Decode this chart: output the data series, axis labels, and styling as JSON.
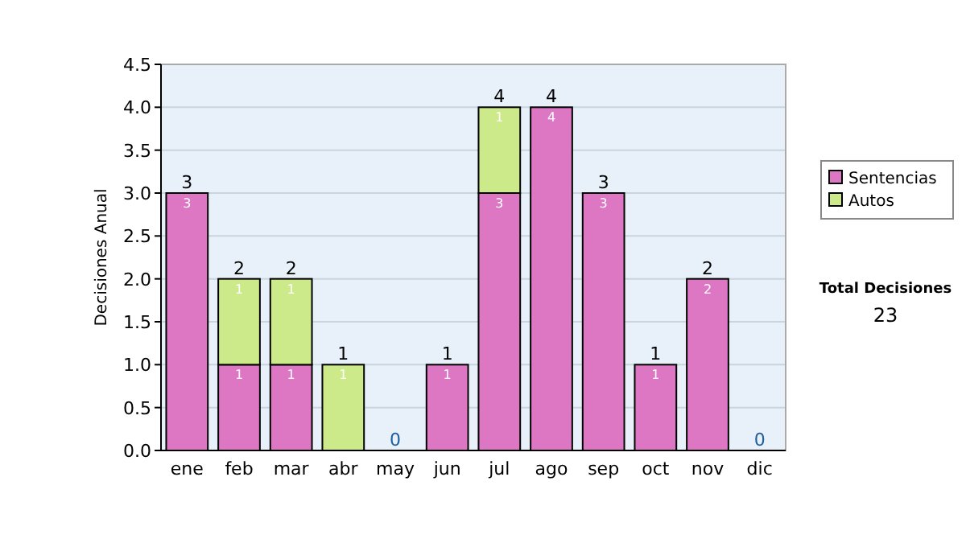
{
  "chart_data": {
    "type": "bar",
    "stacked": true,
    "ylabel": "Decisiones Anual",
    "categories": [
      "ene",
      "feb",
      "mar",
      "abr",
      "may",
      "jun",
      "jul",
      "ago",
      "sep",
      "oct",
      "nov",
      "dic"
    ],
    "series": [
      {
        "name": "Sentencias",
        "color": "#dd77c4",
        "values": [
          3,
          1,
          1,
          0,
          0,
          1,
          3,
          4,
          3,
          1,
          2,
          0
        ],
        "value_labels": [
          "3",
          "1",
          "1",
          null,
          null,
          "1",
          "3",
          "4",
          "3",
          "1",
          "2",
          null
        ]
      },
      {
        "name": "Autos",
        "color": "#ccea8a",
        "values": [
          0,
          1,
          1,
          1,
          0,
          0,
          1,
          0,
          0,
          0,
          0,
          0
        ],
        "value_labels": [
          null,
          "1",
          "1",
          "1",
          null,
          null,
          "1",
          null,
          null,
          null,
          null,
          null
        ]
      }
    ],
    "totals": [
      "3",
      "2",
      "2",
      "1",
      "0",
      "1",
      "4",
      "4",
      "3",
      "1",
      "2",
      "0"
    ],
    "ylim": [
      0,
      4.5
    ],
    "yticks": [
      {
        "value": 0,
        "label": "0.0"
      },
      {
        "value": 0.5,
        "label": "0.5"
      },
      {
        "value": 1,
        "label": "1.0"
      },
      {
        "value": 1.5,
        "label": "1.5"
      },
      {
        "value": 2,
        "label": "2.0"
      },
      {
        "value": 2.5,
        "label": "2.5"
      },
      {
        "value": 3,
        "label": "3.0"
      },
      {
        "value": 3.5,
        "label": "3.5"
      },
      {
        "value": 4,
        "label": "4.0"
      },
      {
        "value": 4.5,
        "label": "4.5"
      }
    ],
    "grid": "y",
    "legend": "right",
    "annotations": [
      "Total Decisiones",
      "23"
    ]
  }
}
